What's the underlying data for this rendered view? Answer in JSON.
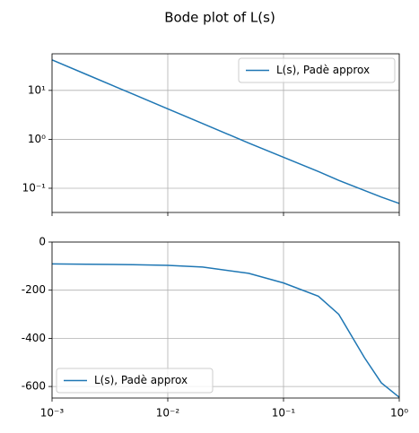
{
  "title": "Bode plot of L(s)",
  "chart_data": [
    {
      "type": "line",
      "xscale": "log",
      "yscale": "log",
      "grid": true,
      "legend": "upper right",
      "x": [
        0.001,
        0.002,
        0.005,
        0.01,
        0.02,
        0.05,
        0.1,
        0.2,
        0.3,
        0.5,
        0.7,
        1
      ],
      "series": [
        {
          "name": "L(s), Padè approx",
          "color": "#1f77b4",
          "values": [
            42,
            21,
            8.4,
            4.2,
            2.1,
            0.84,
            0.43,
            0.22,
            0.145,
            0.09,
            0.066,
            0.049
          ]
        }
      ],
      "xlim": [
        0.001,
        1
      ],
      "ylim": [
        0.032,
        56
      ],
      "yticks": [
        {
          "value": 0.1,
          "label": "10⁻¹"
        },
        {
          "value": 1,
          "label": "10⁰"
        },
        {
          "value": 10,
          "label": "10¹"
        }
      ]
    },
    {
      "type": "line",
      "xscale": "log",
      "grid": true,
      "legend": "lower left",
      "x": [
        0.001,
        0.002,
        0.005,
        0.01,
        0.02,
        0.05,
        0.1,
        0.2,
        0.3,
        0.5,
        0.7,
        1
      ],
      "series": [
        {
          "name": "L(s), Padè approx",
          "color": "#1f77b4",
          "values": [
            -91,
            -92,
            -94,
            -97,
            -104,
            -130,
            -170,
            -225,
            -300,
            -480,
            -585,
            -645
          ]
        }
      ],
      "xlim": [
        0.001,
        1
      ],
      "ylim": [
        -648,
        0
      ],
      "xticks": [
        {
          "value": 0.001,
          "label": "10⁻³"
        },
        {
          "value": 0.01,
          "label": "10⁻²"
        },
        {
          "value": 0.1,
          "label": "10⁻¹"
        },
        {
          "value": 1,
          "label": "10⁰"
        }
      ],
      "yticks": [
        -600,
        -400,
        -200,
        0
      ]
    }
  ]
}
